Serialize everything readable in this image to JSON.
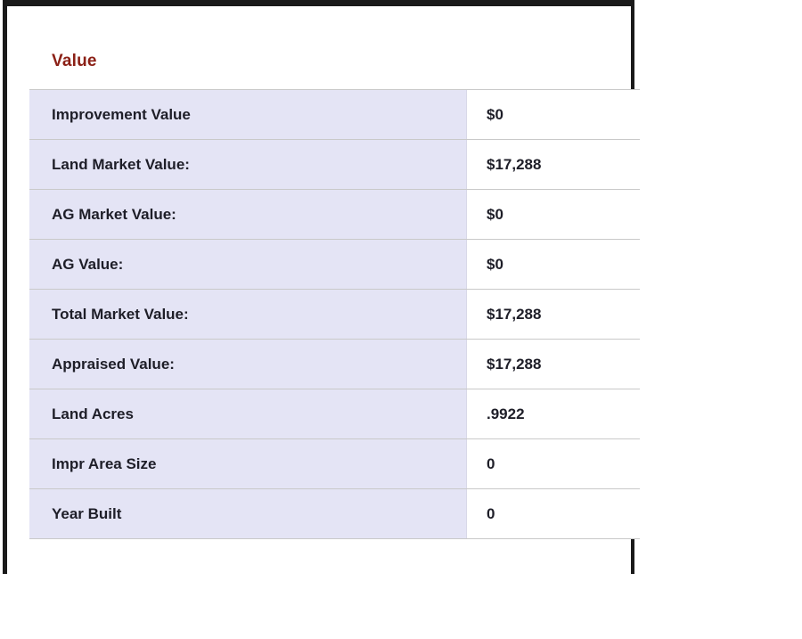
{
  "section": {
    "title": "Value"
  },
  "table": {
    "rows": [
      {
        "label": "Improvement Value",
        "value": "$0"
      },
      {
        "label": "Land Market Value:",
        "value": "$17,288"
      },
      {
        "label": "AG Market Value:",
        "value": "$0"
      },
      {
        "label": "AG Value:",
        "value": "$0"
      },
      {
        "label": "Total Market Value:",
        "value": "$17,288"
      },
      {
        "label": "Appraised Value:",
        "value": "$17,288"
      },
      {
        "label": "Land Acres",
        "value": ".9922"
      },
      {
        "label": "Impr Area Size",
        "value": "0"
      },
      {
        "label": "Year Built",
        "value": "0"
      }
    ]
  },
  "colors": {
    "heading": "#8B2016",
    "row_band": "#E4E4F5",
    "frame": "#1A1A1A"
  }
}
